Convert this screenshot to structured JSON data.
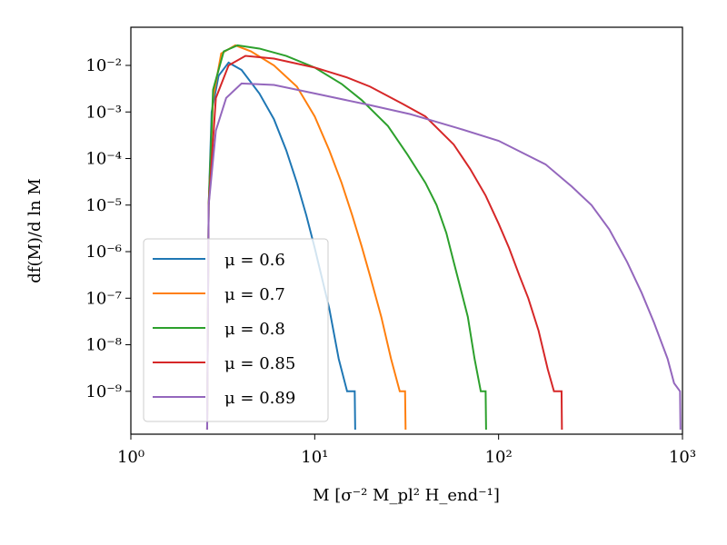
{
  "chart_data": {
    "type": "line",
    "xlabel": "M [σ⁻² M_pl² H_end⁻¹]",
    "ylabel": "df(M)/d ln M",
    "xlog": true,
    "ylog": true,
    "xlim": [
      1,
      1000
    ],
    "ylim": [
      1.2e-10,
      0.066
    ],
    "xticks": [
      {
        "value": 1,
        "label": "10⁰"
      },
      {
        "value": 10,
        "label": "10¹"
      },
      {
        "value": 100,
        "label": "10²"
      },
      {
        "value": 1000,
        "label": "10³"
      }
    ],
    "yticks": [
      {
        "value": 1e-09,
        "label": "10⁻⁹"
      },
      {
        "value": 1e-08,
        "label": "10⁻⁸"
      },
      {
        "value": 1e-07,
        "label": "10⁻⁷"
      },
      {
        "value": 1e-06,
        "label": "10⁻⁶"
      },
      {
        "value": 1e-05,
        "label": "10⁻⁵"
      },
      {
        "value": 0.0001,
        "label": "10⁻⁴"
      },
      {
        "value": 0.001,
        "label": "10⁻³"
      },
      {
        "value": 0.01,
        "label": "10⁻²"
      }
    ],
    "legend": "lower left",
    "series": [
      {
        "name": "μ = 0.6",
        "color": "#1f77b4",
        "x": [
          2.6,
          2.65,
          2.75,
          3.0,
          3.4,
          4.0,
          5.0,
          6.0,
          7.0,
          8.0,
          9.0,
          10.0,
          11.0,
          12.0,
          13.5,
          15,
          16.5,
          16.6
        ],
        "values": [
          1.5e-10,
          1e-05,
          0.001,
          0.006,
          0.0115,
          0.008,
          0.0025,
          0.0007,
          0.00015,
          3e-05,
          6e-06,
          1.2e-06,
          2.5e-07,
          6e-08,
          5e-09,
          1e-09,
          1e-09,
          1.5e-10
        ]
      },
      {
        "name": "μ = 0.7",
        "color": "#ff7f0e",
        "x": [
          2.6,
          2.65,
          2.8,
          3.1,
          3.7,
          4.5,
          6,
          8,
          10,
          12,
          14,
          16,
          18,
          20,
          23,
          26,
          29,
          31,
          31.2
        ],
        "values": [
          1.5e-10,
          1e-05,
          0.002,
          0.018,
          0.027,
          0.02,
          0.01,
          0.0035,
          0.0008,
          0.00015,
          3e-05,
          6e-06,
          1.3e-06,
          3e-07,
          4e-08,
          5e-09,
          1e-09,
          1e-09,
          1.5e-10
        ]
      },
      {
        "name": "μ = 0.8",
        "color": "#2ca02c",
        "x": [
          2.6,
          2.65,
          2.8,
          3.2,
          3.8,
          5,
          7,
          10,
          14,
          18,
          25,
          32,
          40,
          46,
          52,
          57,
          63,
          68,
          74,
          80,
          85,
          85.5
        ],
        "values": [
          1.5e-10,
          1e-05,
          0.003,
          0.02,
          0.027,
          0.023,
          0.016,
          0.009,
          0.004,
          0.0018,
          0.0005,
          0.00012,
          3e-05,
          1e-05,
          2.5e-06,
          6e-07,
          1.3e-07,
          4e-08,
          5e-09,
          1e-09,
          1e-09,
          1.5e-10
        ]
      },
      {
        "name": "μ = 0.85",
        "color": "#d62728",
        "x": [
          2.6,
          2.65,
          2.9,
          3.4,
          4.2,
          6,
          10,
          15,
          20,
          30,
          40,
          57,
          70,
          85,
          100,
          114,
          130,
          145,
          165,
          185,
          200,
          220,
          221
        ],
        "values": [
          1.5e-10,
          1e-05,
          0.002,
          0.01,
          0.016,
          0.014,
          0.009,
          0.0055,
          0.0035,
          0.0015,
          0.0008,
          0.0002,
          6e-05,
          1.6e-05,
          4e-06,
          1.2e-06,
          3e-07,
          1e-07,
          2e-08,
          3e-09,
          1e-09,
          1e-09,
          1.5e-10
        ]
      },
      {
        "name": "μ = 0.89",
        "color": "#9467bd",
        "x": [
          2.6,
          2.65,
          2.9,
          3.3,
          4,
          6,
          10,
          20,
          33,
          60,
          100,
          180,
          250,
          320,
          400,
          500,
          600,
          700,
          830,
          900,
          970,
          975
        ],
        "values": [
          1.5e-10,
          1e-05,
          0.0004,
          0.002,
          0.0041,
          0.0038,
          0.0025,
          0.0014,
          0.0009,
          0.00045,
          0.00024,
          7.5e-05,
          2.5e-05,
          1e-05,
          3e-06,
          6e-07,
          1.3e-07,
          3e-08,
          5e-09,
          1.5e-09,
          1e-09,
          1.5e-10
        ]
      }
    ]
  }
}
